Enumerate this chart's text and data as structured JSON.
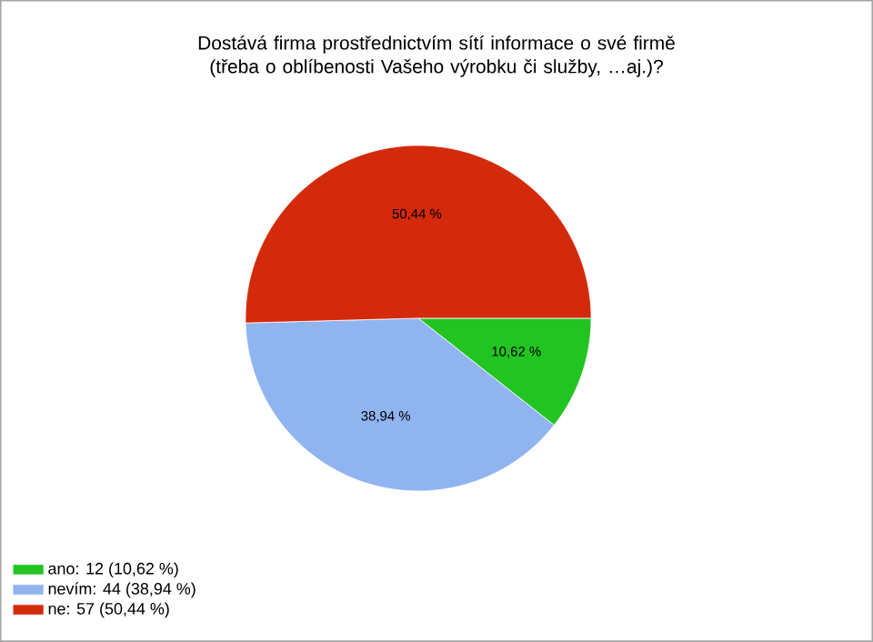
{
  "chart_data": {
    "type": "pie",
    "title": "Dostává firma prostřednictvím sítí informace o své firmě (třeba o oblíbenosti Vašeho výrobku či služby, …aj.)?",
    "categories": [
      "ano: 12 (10,62 %)",
      "nevím: 44 (38,94 %)",
      "ne: 57 (50,44 %)"
    ],
    "values": [
      10.62,
      38.94,
      50.44
    ],
    "value_labels": [
      "10,62 %",
      "38,94 %",
      "50,44 %"
    ],
    "colors": [
      "#22c422",
      "#8fb4f0",
      "#d42a0c"
    ],
    "legend": "bottom left"
  }
}
